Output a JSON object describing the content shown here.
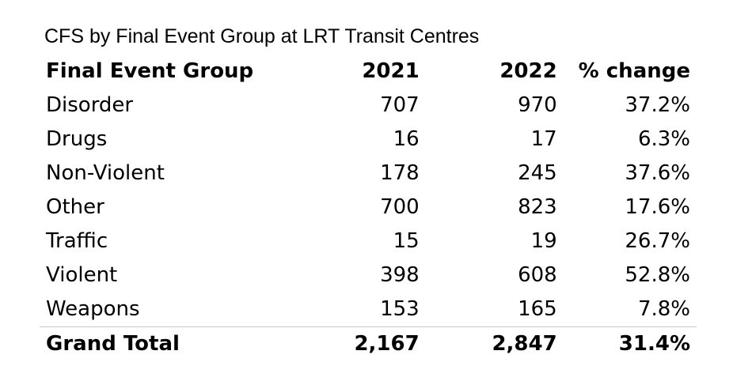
{
  "title": "CFS by Final Event Group at LRT Transit Centres",
  "headers": [
    "Final Event Group",
    "2021",
    "2022",
    "% change"
  ],
  "rows": [
    [
      "Disorder",
      "707",
      "970",
      "37.2%"
    ],
    [
      "Drugs",
      "16",
      "17",
      "6.3%"
    ],
    [
      "Non-Violent",
      "178",
      "245",
      "37.6%"
    ],
    [
      "Other",
      "700",
      "823",
      "17.6%"
    ],
    [
      "Traffic",
      "15",
      "19",
      "26.7%"
    ],
    [
      "Violent",
      "398",
      "608",
      "52.8%"
    ],
    [
      "Weapons",
      "153",
      "165",
      "7.8%"
    ]
  ],
  "total": [
    "Grand Total",
    "2,167",
    "2,847",
    "31.4%"
  ]
}
